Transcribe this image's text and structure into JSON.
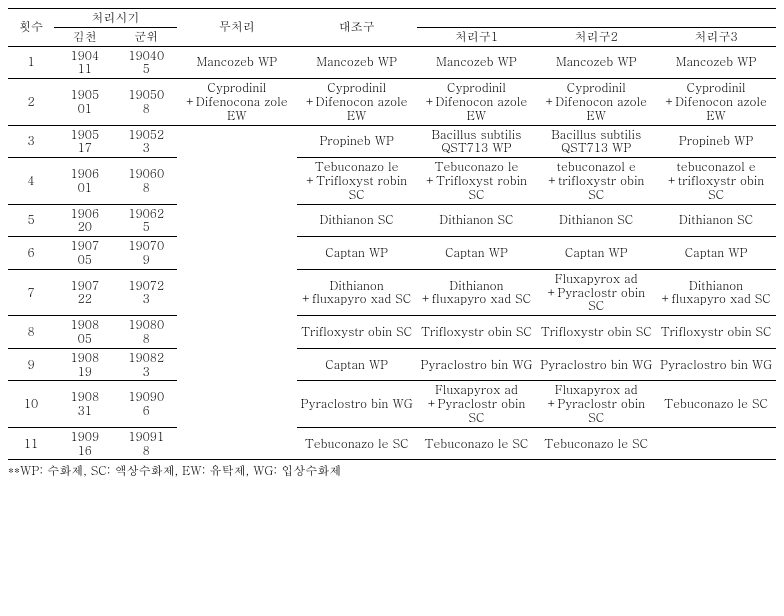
{
  "header": {
    "count": "횟수",
    "timing": "처리시기",
    "gimcheon": "김천",
    "gunwi": "군위",
    "untreated": "무처리",
    "control": "대조구",
    "t1": "처리구1",
    "t2": "처리구2",
    "t3": "처리구3"
  },
  "rows": [
    {
      "n": "1",
      "g": "1904\n11",
      "w": "19040\n5",
      "a": "Mancozeb WP",
      "b": "Mancozeb WP",
      "c": "Mancozeb WP",
      "d": "Mancozeb WP",
      "e": "Mancozeb WP"
    },
    {
      "n": "2",
      "g": "1905\n01",
      "w": "19050\n8",
      "a": "Cyprodinil +Difenocona zole EW",
      "b": "Cyprodinil +Difenocon azole EW",
      "c": "Cyprodinil +Difenocon azole EW",
      "d": "Cyprodinil +Difenocon azole EW",
      "e": "Cyprodinil +Difenocon azole EW"
    },
    {
      "n": "3",
      "g": "1905\n17",
      "w": "19052\n3",
      "a": "",
      "b": "Propineb WP",
      "c": "Bacillus subtilis QST713 WP",
      "d": "Bacillus subtilis QST713 WP",
      "e": "Propineb WP"
    },
    {
      "n": "4",
      "g": "1906\n01",
      "w": "19060\n8",
      "a": "",
      "b": "Tebuconazo le +Trifloxyst robin SC",
      "c": "Tebuconazo le +Trifloxyst robin SC",
      "d": "tebuconazol e +trifloxystr obin SC",
      "e": "tebuconazol e +trifloxystr obin SC"
    },
    {
      "n": "5",
      "g": "1906\n20",
      "w": "19062\n5",
      "a": "",
      "b": "Dithianon SC",
      "c": "Dithianon SC",
      "d": "Dithianon SC",
      "e": "Dithianon SC"
    },
    {
      "n": "6",
      "g": "1907\n05",
      "w": "19070\n9",
      "a": "",
      "b": "Captan WP",
      "c": "Captan WP",
      "d": "Captan WP",
      "e": "Captan WP"
    },
    {
      "n": "7",
      "g": "1907\n22",
      "w": "19072\n3",
      "a": "",
      "b": "Dithianon +fluxapyro xad SC",
      "c": "Dithianon +fluxapyro xad SC",
      "d": "Fluxapyrox ad +Pyraclostr obin SC",
      "e": "Dithianon +fluxapyro xad SC"
    },
    {
      "n": "8",
      "g": "1908\n05",
      "w": "19080\n8",
      "a": "",
      "b": "Trifloxystr obin SC",
      "c": "Trifloxystr obin SC",
      "d": "Trifloxystr obin SC",
      "e": "Trifloxystr obin SC"
    },
    {
      "n": "9",
      "g": "1908\n19",
      "w": "19082\n3",
      "a": "",
      "b": "Captan WP",
      "c": "Pyraclostro bin WG",
      "d": "Pyraclostro bin WG",
      "e": "Pyraclostro bin WG"
    },
    {
      "n": "10",
      "g": "1908\n31",
      "w": "19090\n6",
      "a": "",
      "b": "Pyraclostro bin WG",
      "c": "Fluxapyrox ad +Pyraclostr obin SC",
      "d": "Fluxapyrox ad +Pyraclostr obin SC",
      "e": "Tebuconazo le SC"
    },
    {
      "n": "11",
      "g": "1909\n16",
      "w": "19091\n8",
      "a": "",
      "b": "Tebuconazo le SC",
      "c": "Tebuconazo le SC",
      "d": "Tebuconazo le SC",
      "e": ""
    }
  ],
  "footnote": "**WP: 수화제, SC: 액상수화제, EW: 유탁제, WG: 입상수화제"
}
